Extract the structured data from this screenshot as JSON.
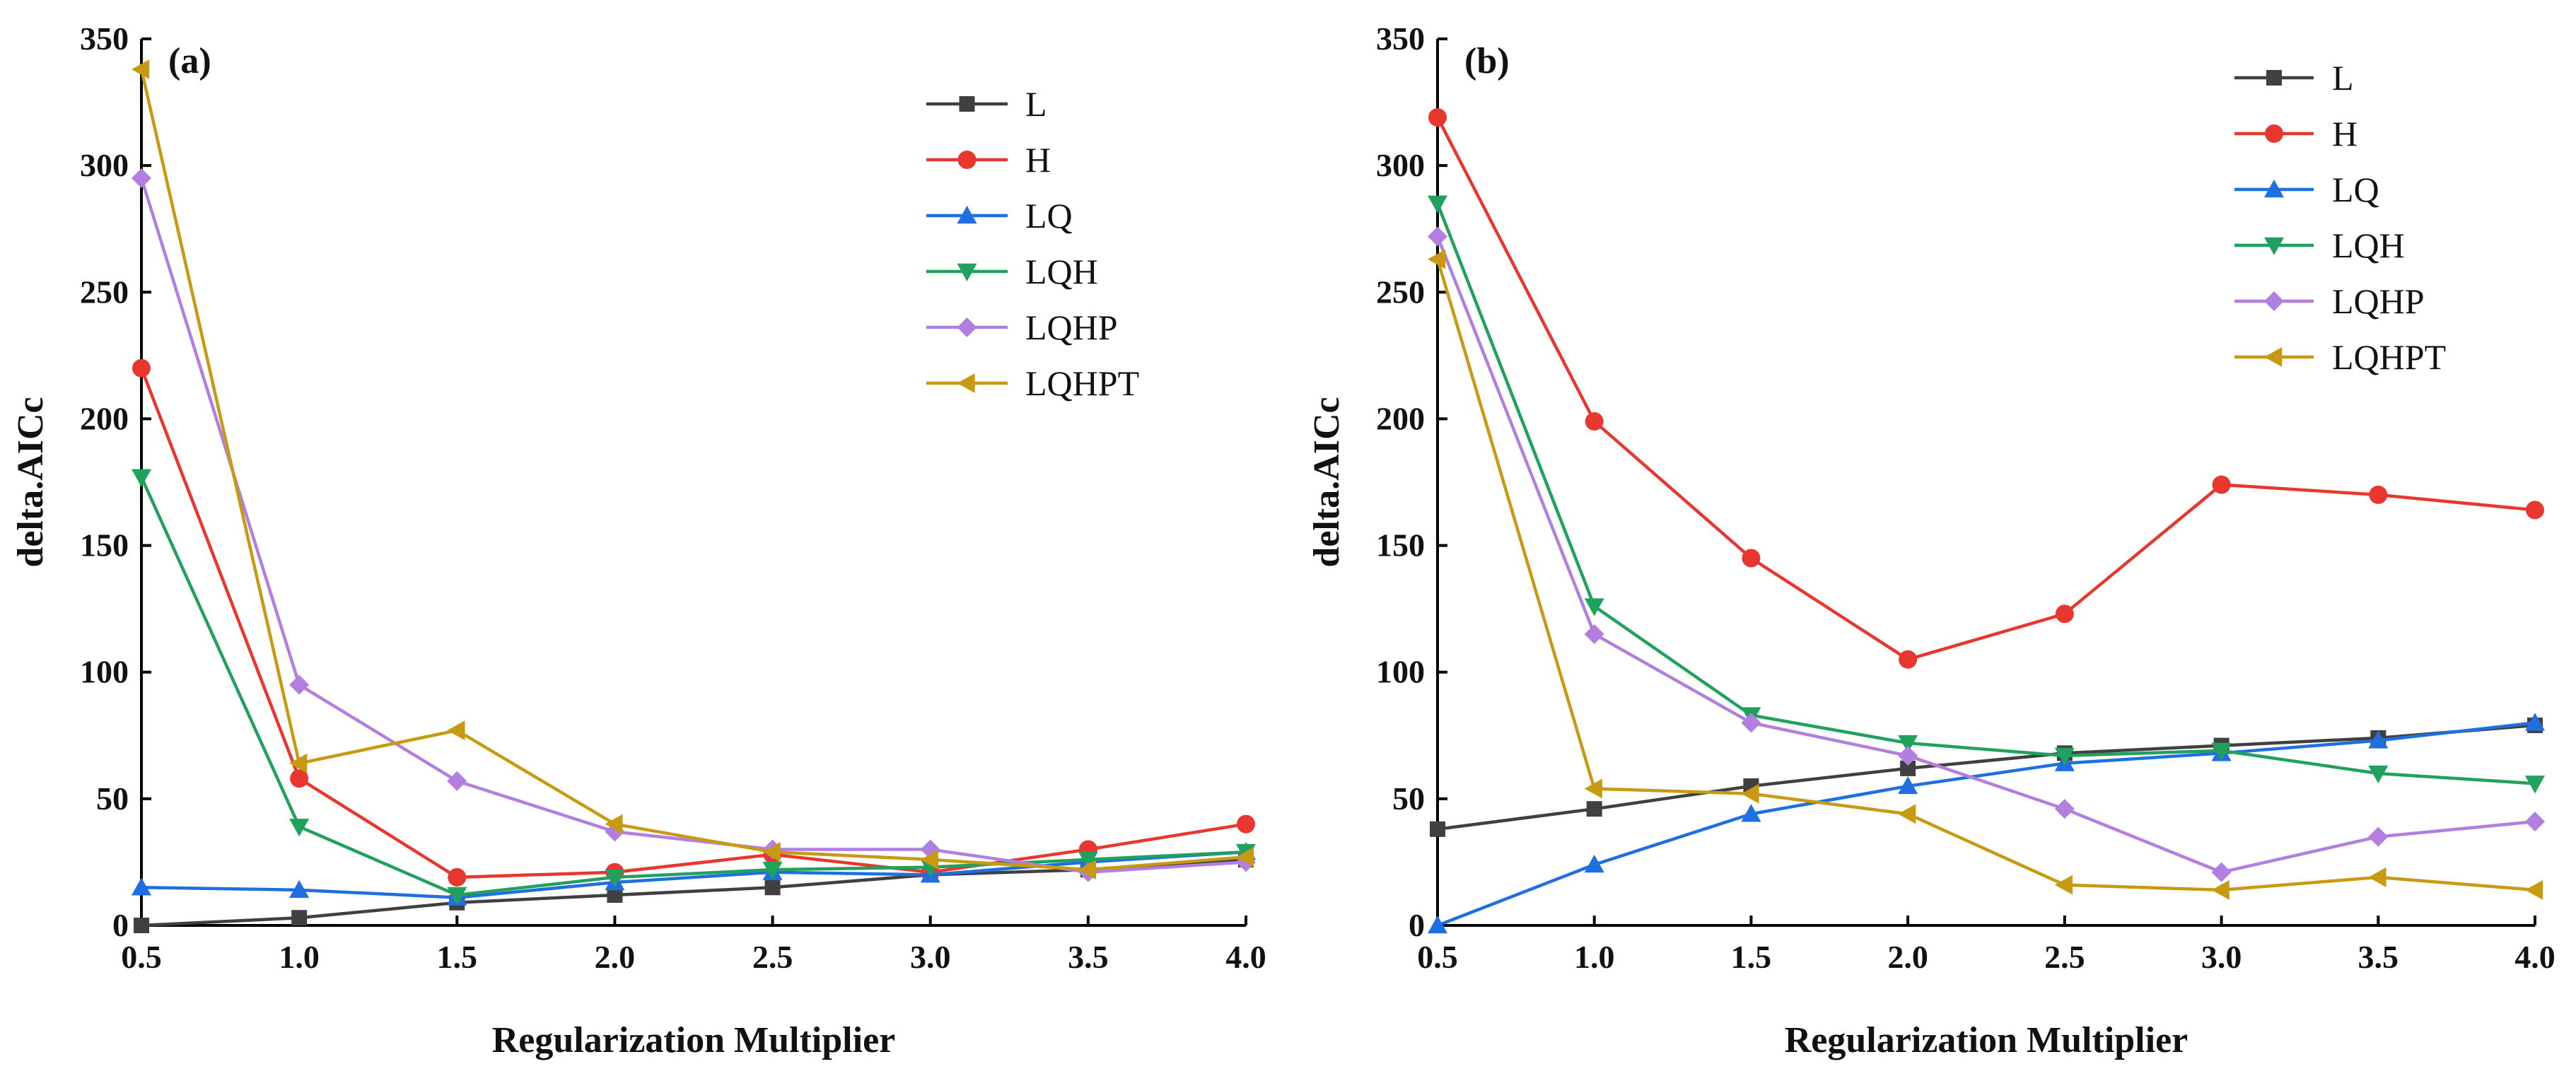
{
  "chart_data": [
    {
      "type": "line",
      "panel_label": "(a)",
      "xlabel": "Regularization Multiplier",
      "ylabel": "delta.AICc",
      "x": [
        0.5,
        1.0,
        1.5,
        2.0,
        2.5,
        3.0,
        3.5,
        4.0
      ],
      "xticks": [
        "0.5",
        "1.0",
        "1.5",
        "2.0",
        "2.5",
        "3.0",
        "3.5",
        "4.0"
      ],
      "yticks": [
        "0",
        "50",
        "100",
        "150",
        "200",
        "250",
        "300",
        "350"
      ],
      "xlim": [
        0.5,
        4.0
      ],
      "ylim": [
        0,
        350
      ],
      "legend_position": "top-right",
      "series": [
        {
          "name": "L",
          "color": "#404040",
          "marker": "square",
          "values": [
            0,
            3,
            9,
            12,
            15,
            20,
            22,
            26
          ]
        },
        {
          "name": "H",
          "color": "#e8372e",
          "marker": "circle",
          "values": [
            220,
            58,
            19,
            21,
            28,
            21,
            30,
            40
          ]
        },
        {
          "name": "LQ",
          "color": "#1f6fe0",
          "marker": "triangle-up",
          "values": [
            15,
            14,
            11,
            17,
            21,
            20,
            25,
            29
          ]
        },
        {
          "name": "LQH",
          "color": "#21a15e",
          "marker": "triangle-down",
          "values": [
            177,
            39,
            12,
            19,
            22,
            23,
            26,
            29
          ]
        },
        {
          "name": "LQHP",
          "color": "#b27ee0",
          "marker": "diamond",
          "values": [
            295,
            95,
            57,
            37,
            30,
            30,
            21,
            25
          ]
        },
        {
          "name": "LQHPT",
          "color": "#c89a14",
          "marker": "triangle-left",
          "values": [
            338,
            64,
            77,
            40,
            29,
            26,
            22,
            27
          ]
        }
      ]
    },
    {
      "type": "line",
      "panel_label": "(b)",
      "xlabel": "Regularization Multiplier",
      "ylabel": "delta.AICc",
      "x": [
        0.5,
        1.0,
        1.5,
        2.0,
        2.5,
        3.0,
        3.5,
        4.0
      ],
      "xticks": [
        "0.5",
        "1.0",
        "1.5",
        "2.0",
        "2.5",
        "3.0",
        "3.5",
        "4.0"
      ],
      "yticks": [
        "0",
        "50",
        "100",
        "150",
        "200",
        "250",
        "300",
        "350"
      ],
      "xlim": [
        0.5,
        4.0
      ],
      "ylim": [
        0,
        350
      ],
      "legend_position": "top-right",
      "series": [
        {
          "name": "L",
          "color": "#404040",
          "marker": "square",
          "values": [
            38,
            46,
            55,
            62,
            68,
            71,
            74,
            79
          ]
        },
        {
          "name": "H",
          "color": "#e8372e",
          "marker": "circle",
          "values": [
            319,
            199,
            145,
            105,
            123,
            174,
            170,
            164
          ]
        },
        {
          "name": "LQ",
          "color": "#1f6fe0",
          "marker": "triangle-up",
          "values": [
            0,
            24,
            44,
            55,
            64,
            68,
            73,
            80
          ]
        },
        {
          "name": "LQH",
          "color": "#21a15e",
          "marker": "triangle-down",
          "values": [
            285,
            126,
            83,
            72,
            67,
            69,
            60,
            56
          ]
        },
        {
          "name": "LQHP",
          "color": "#b27ee0",
          "marker": "diamond",
          "values": [
            272,
            115,
            80,
            67,
            46,
            21,
            35,
            41
          ]
        },
        {
          "name": "LQHPT",
          "color": "#c89a14",
          "marker": "triangle-left",
          "values": [
            263,
            54,
            52,
            44,
            16,
            14,
            19,
            14
          ]
        }
      ]
    }
  ]
}
